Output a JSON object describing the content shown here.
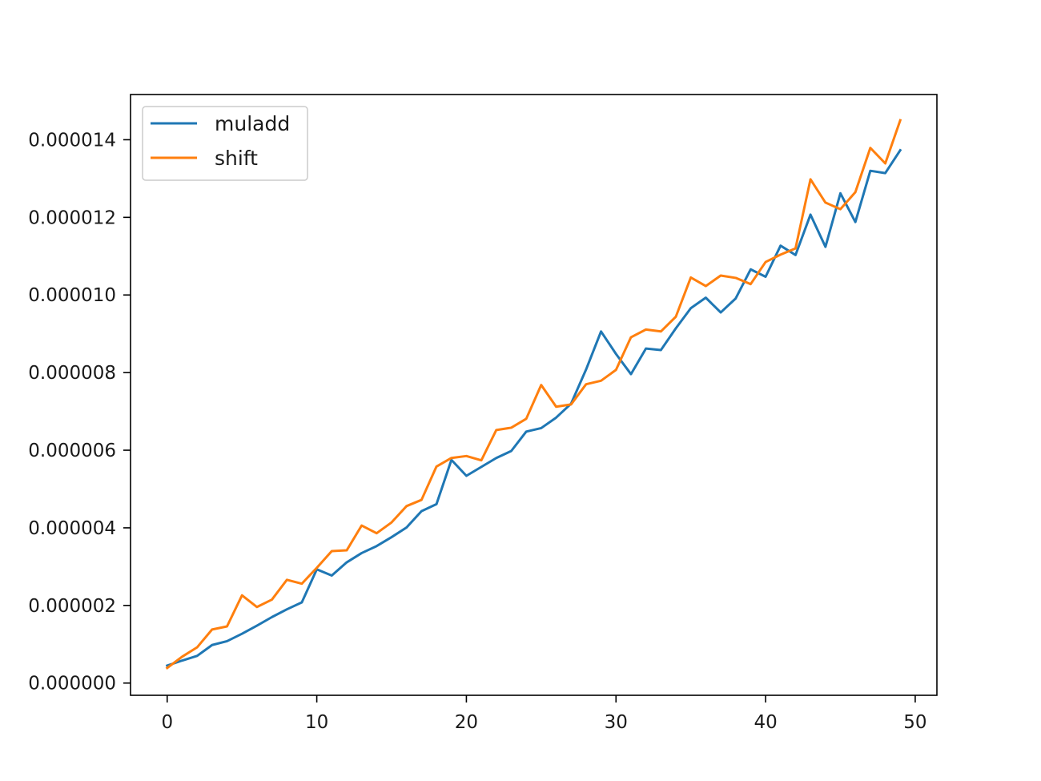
{
  "chart_data": {
    "type": "line",
    "title": "",
    "xlabel": "",
    "ylabel": "",
    "xlim": [
      -2.45,
      51.45
    ],
    "ylim": [
      -3.15e-07,
      1.5165e-05
    ],
    "x_ticks": [
      0,
      10,
      20,
      30,
      40,
      50
    ],
    "x_tick_labels": [
      "0",
      "10",
      "20",
      "30",
      "40",
      "50"
    ],
    "y_ticks": [
      0.0,
      2e-06,
      4e-06,
      6e-06,
      8e-06,
      1e-05,
      1.2e-05,
      1.4e-05
    ],
    "y_tick_labels": [
      "0.000000",
      "0.000002",
      "0.000004",
      "0.000006",
      "0.000008",
      "0.000010",
      "0.000012",
      "0.000014"
    ],
    "grid": false,
    "legend_position": "upper left",
    "x": [
      0,
      1,
      2,
      3,
      4,
      5,
      6,
      7,
      8,
      9,
      10,
      11,
      12,
      13,
      14,
      15,
      16,
      17,
      18,
      19,
      20,
      21,
      22,
      23,
      24,
      25,
      26,
      27,
      28,
      29,
      30,
      31,
      32,
      33,
      34,
      35,
      36,
      37,
      38,
      39,
      40,
      41,
      42,
      43,
      44,
      45,
      46,
      47,
      48,
      49
    ],
    "series": [
      {
        "name": "muladd",
        "color": "#1f77b4",
        "values": [
          4.5e-07,
          5.8e-07,
          7e-07,
          9.8e-07,
          1.08e-06,
          1.27e-06,
          1.48e-06,
          1.7e-06,
          1.9e-06,
          2.08e-06,
          2.93e-06,
          2.77e-06,
          3.11e-06,
          3.35e-06,
          3.53e-06,
          3.76e-06,
          4.01e-06,
          4.43e-06,
          4.61e-06,
          5.75e-06,
          5.34e-06,
          5.57e-06,
          5.8e-06,
          5.98e-06,
          6.48e-06,
          6.57e-06,
          6.84e-06,
          7.2e-06,
          8.08e-06,
          9.06e-06,
          8.48e-06,
          7.96e-06,
          8.62e-06,
          8.58e-06,
          9.14e-06,
          9.66e-06,
          9.93e-06,
          9.55e-06,
          9.91e-06,
          1.066e-05,
          1.047e-05,
          1.127e-05,
          1.103e-05,
          1.207e-05,
          1.124e-05,
          1.262e-05,
          1.188e-05,
          1.32e-05,
          1.314e-05,
          1.373e-05
        ]
      },
      {
        "name": "shift",
        "color": "#ff7f0e",
        "values": [
          3.9e-07,
          6.8e-07,
          9.2e-07,
          1.38e-06,
          1.46e-06,
          2.26e-06,
          1.96e-06,
          2.15e-06,
          2.66e-06,
          2.56e-06,
          2.97e-06,
          3.4e-06,
          3.42e-06,
          4.06e-06,
          3.86e-06,
          4.14e-06,
          4.56e-06,
          4.72e-06,
          5.58e-06,
          5.8e-06,
          5.85e-06,
          5.74e-06,
          6.52e-06,
          6.58e-06,
          6.81e-06,
          7.68e-06,
          7.12e-06,
          7.18e-06,
          7.7e-06,
          7.79e-06,
          8.07e-06,
          8.91e-06,
          9.11e-06,
          9.06e-06,
          9.44e-06,
          1.045e-05,
          1.023e-05,
          1.05e-05,
          1.044e-05,
          1.028e-05,
          1.085e-05,
          1.104e-05,
          1.12e-05,
          1.298e-05,
          1.238e-05,
          1.221e-05,
          1.265e-05,
          1.379e-05,
          1.339e-05,
          1.45e-05
        ]
      }
    ]
  }
}
